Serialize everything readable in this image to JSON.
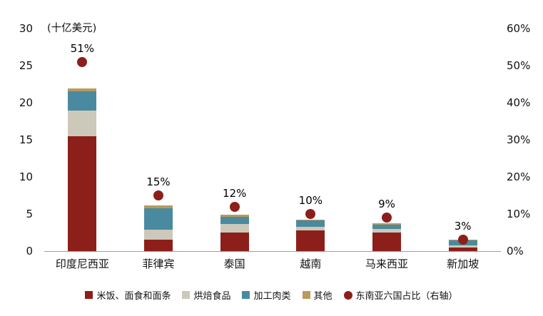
{
  "unit_label": "(十亿美元)",
  "colors": {
    "rice": "#8C1F1A",
    "bakery": "#CCC9BA",
    "meat": "#4A8AA0",
    "other": "#B99A5B",
    "dot": "#8C1F1A",
    "axis_line": "#9d9d9d"
  },
  "chart_data": {
    "type": "bar",
    "subtype": "stacked-with-dot-series",
    "title": "",
    "unit": "(十亿美元)",
    "categories": [
      "印度尼西亚",
      "菲律宾",
      "泰国",
      "越南",
      "马来西亚",
      "新加坡"
    ],
    "series": [
      {
        "name": "米饭、面食和面条",
        "color": "#8C1F1A",
        "values": [
          15.5,
          1.5,
          2.5,
          2.8,
          2.5,
          0.5
        ]
      },
      {
        "name": "烘焙食品",
        "color": "#CCC9BA",
        "values": [
          3.4,
          1.4,
          1.2,
          0.5,
          0.5,
          0.3
        ]
      },
      {
        "name": "加工肉类",
        "color": "#4A8AA0",
        "values": [
          2.6,
          2.9,
          0.9,
          0.85,
          0.6,
          0.65
        ]
      },
      {
        "name": "其他",
        "color": "#B99A5B",
        "values": [
          0.4,
          0.4,
          0.3,
          0.1,
          0.15,
          0.05
        ]
      }
    ],
    "dot_series": {
      "name": "东南亚六国占比（右轴）",
      "color": "#8C1F1A",
      "axis": "right",
      "values_pct": [
        51,
        15,
        12,
        10,
        9,
        3
      ],
      "labels": [
        "51%",
        "15%",
        "12%",
        "10%",
        "9%",
        "3%"
      ]
    },
    "left_axis": {
      "ticks": [
        0,
        5,
        10,
        15,
        20,
        25,
        30
      ],
      "min": 0,
      "max": 30
    },
    "right_axis": {
      "tick_labels": [
        "0%",
        "10%",
        "20%",
        "30%",
        "40%",
        "50%",
        "60%"
      ],
      "min": 0,
      "max": 60
    },
    "grid": false,
    "legend_position": "bottom"
  },
  "legend": {
    "dot_label": "东南亚六国占比（右轴）"
  }
}
